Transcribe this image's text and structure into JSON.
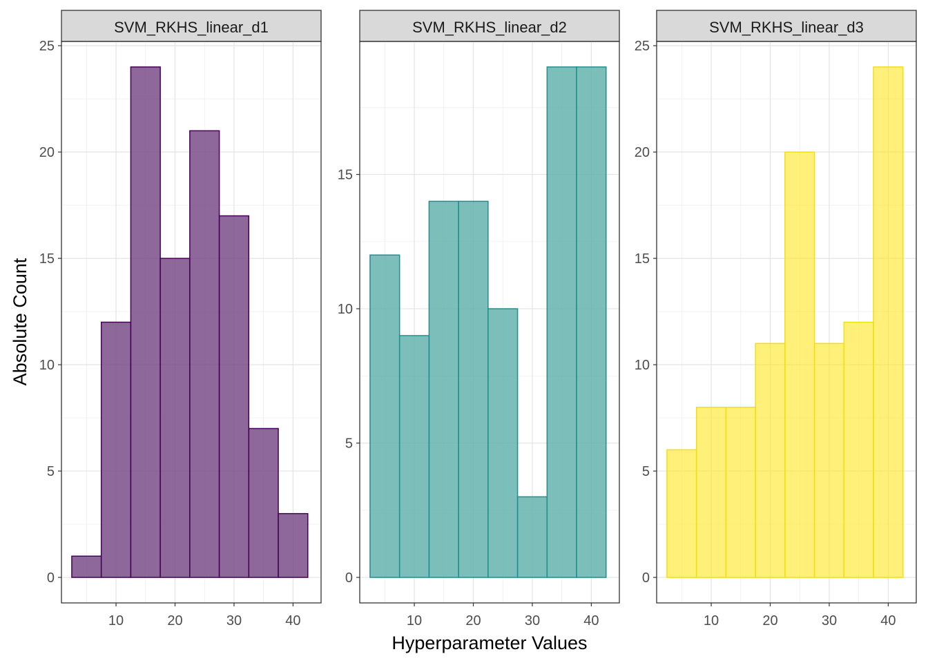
{
  "chart_data": {
    "type": "bar",
    "xlabel": "Hyperparameter Values",
    "ylabel": "Absolute Count",
    "x_ticks": [
      10,
      20,
      30,
      40
    ],
    "xlim": [
      0.75,
      44.75
    ],
    "bin_width": 5,
    "bin_centers": [
      5,
      10,
      15,
      20,
      25,
      30,
      35,
      40
    ],
    "grid": true,
    "panels": [
      {
        "name": "SVM_RKHS_linear_d1",
        "values": [
          1,
          12,
          24,
          15,
          21,
          17,
          7,
          3
        ],
        "ylim": [
          -1.2,
          25.2
        ],
        "y_ticks": [
          0,
          5,
          10,
          15,
          20,
          25
        ],
        "fill": "#7a4e8a",
        "stroke": "#440154",
        "fill_opacity": 0.85
      },
      {
        "name": "SVM_RKHS_linear_d2",
        "values": [
          12,
          9,
          14,
          14,
          10,
          3,
          19,
          19
        ],
        "ylim": [
          -0.95,
          19.95
        ],
        "y_ticks": [
          0,
          5,
          10,
          15
        ],
        "fill": "#5fb0ab",
        "stroke": "#21908d",
        "fill_opacity": 0.82
      },
      {
        "name": "SVM_RKHS_linear_d3",
        "values": [
          6,
          8,
          8,
          11,
          20,
          11,
          12,
          24
        ],
        "ylim": [
          -1.2,
          25.2
        ],
        "y_ticks": [
          0,
          5,
          10,
          15,
          20,
          25
        ],
        "fill": "#fde725",
        "stroke": "#f2df10",
        "fill_opacity": 0.62
      }
    ]
  }
}
